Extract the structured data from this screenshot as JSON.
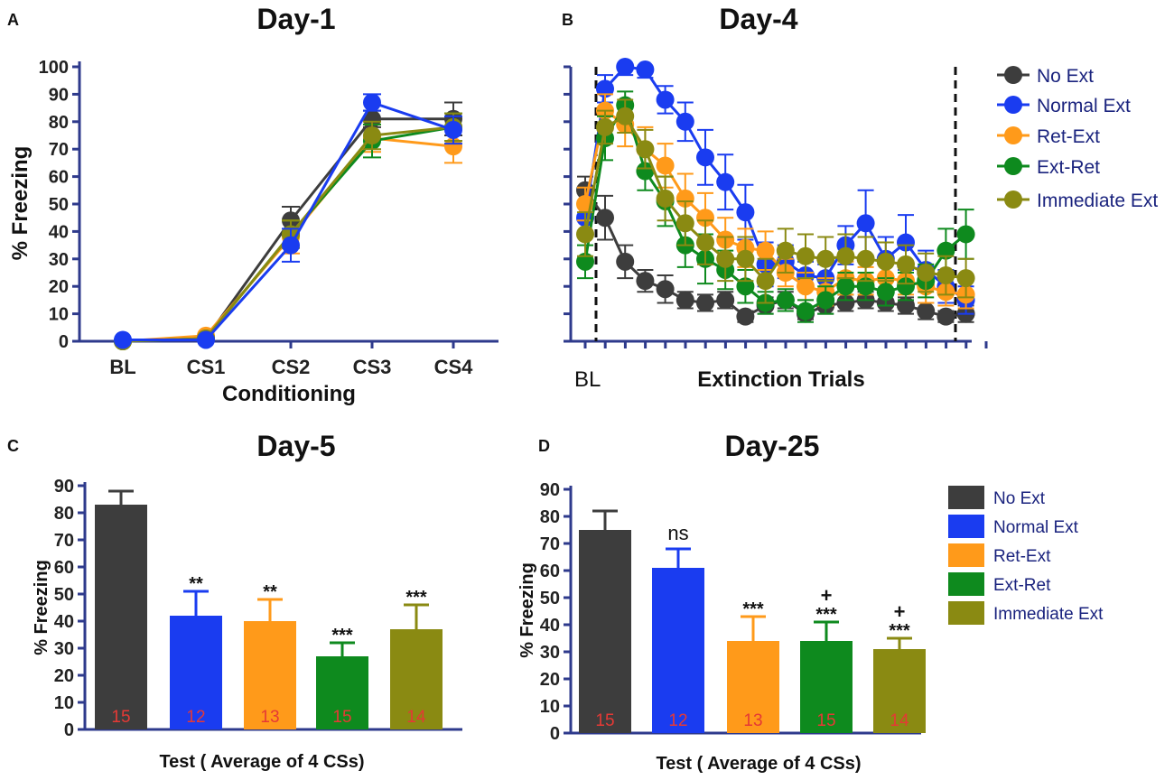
{
  "colors": {
    "No Ext": "#3d3d3d",
    "Normal Ext": "#1a3cf0",
    "Ret-Ext": "#ff9a1a",
    "Ext-Ret": "#0e8a1e",
    "Immediate Ext": "#8a8a12",
    "axis": "#2e3a8c",
    "n_label": "#e53935"
  },
  "chart_data": [
    {
      "id": "A",
      "panel_letter": "A",
      "type": "line",
      "title": "Day-1",
      "xlabel": "Conditioning",
      "ylabel": "% Freezing",
      "ylim": [
        0,
        100
      ],
      "yticks": [
        "0",
        "10",
        "20",
        "30",
        "40",
        "50",
        "60",
        "70",
        "80",
        "90",
        "100"
      ],
      "categories": [
        "BL",
        "CS1",
        "CS2",
        "CS3",
        "CS4"
      ],
      "series": [
        {
          "name": "No Ext",
          "values": [
            0,
            1,
            44,
            81,
            81
          ],
          "err": [
            0,
            0.5,
            5,
            3,
            6
          ]
        },
        {
          "name": "Ret-Ext",
          "values": [
            0,
            2,
            38,
            74,
            71
          ],
          "err": [
            0,
            0.5,
            6,
            5,
            6
          ]
        },
        {
          "name": "Ext-Ret",
          "values": [
            0,
            1,
            39,
            73,
            78
          ],
          "err": [
            0,
            0.5,
            5,
            6,
            5
          ]
        },
        {
          "name": "Immediate Ext",
          "values": [
            0,
            1,
            39,
            75,
            78
          ],
          "err": [
            0,
            0.5,
            5,
            5,
            5
          ]
        },
        {
          "name": "Normal Ext",
          "values": [
            0.5,
            0.5,
            35,
            87,
            77
          ],
          "err": [
            0,
            0.5,
            6,
            3,
            5
          ]
        }
      ]
    },
    {
      "id": "B",
      "panel_letter": "B",
      "type": "line",
      "title": "Day-4",
      "xlabel": "Extinction Trials",
      "x_first_label": "BL",
      "ylim": [
        0,
        100
      ],
      "series": [
        {
          "name": "No Ext",
          "values": [
            55,
            45,
            29,
            22,
            19,
            15,
            14,
            15,
            9,
            13,
            15,
            10,
            13,
            14,
            15,
            14,
            13,
            11,
            9,
            10
          ],
          "err": [
            5,
            8,
            6,
            4,
            5,
            3,
            3,
            3,
            2,
            3,
            3,
            2,
            3,
            3,
            3,
            3,
            3,
            3,
            2,
            3
          ]
        },
        {
          "name": "Normal Ext",
          "values": [
            45,
            92,
            100,
            99,
            88,
            80,
            67,
            58,
            47,
            28,
            29,
            24,
            23,
            35,
            43,
            30,
            36,
            26,
            20,
            15
          ],
          "err": [
            6,
            5,
            3,
            3,
            5,
            7,
            10,
            10,
            10,
            8,
            6,
            5,
            5,
            7,
            12,
            8,
            10,
            7,
            6,
            5
          ]
        },
        {
          "name": "Ret-Ext",
          "values": [
            50,
            84,
            79,
            70,
            64,
            52,
            45,
            37,
            34,
            33,
            25,
            20,
            18,
            23,
            22,
            23,
            22,
            20,
            18,
            17
          ],
          "err": [
            6,
            6,
            8,
            8,
            8,
            9,
            9,
            8,
            7,
            7,
            5,
            5,
            5,
            6,
            5,
            6,
            5,
            6,
            5,
            5
          ]
        },
        {
          "name": "Ext-Ret",
          "values": [
            29,
            74,
            86,
            62,
            51,
            35,
            30,
            26,
            20,
            14,
            15,
            11,
            15,
            20,
            20,
            18,
            20,
            22,
            33,
            39
          ],
          "err": [
            6,
            8,
            5,
            7,
            9,
            8,
            9,
            7,
            6,
            4,
            4,
            4,
            5,
            5,
            5,
            5,
            5,
            6,
            8,
            9
          ]
        },
        {
          "name": "Immediate Ext",
          "values": [
            39,
            78,
            82,
            70,
            52,
            43,
            36,
            30,
            30,
            22,
            33,
            31,
            30,
            31,
            30,
            29,
            28,
            25,
            24,
            23
          ],
          "err": [
            8,
            6,
            6,
            7,
            8,
            8,
            8,
            8,
            8,
            8,
            8,
            8,
            8,
            8,
            8,
            7,
            7,
            7,
            7,
            7
          ]
        }
      ],
      "legend": [
        "No Ext",
        "Normal Ext",
        "Ret-Ext",
        "Ext-Ret",
        "Immediate Ext"
      ],
      "legend_position": "right"
    },
    {
      "id": "C",
      "panel_letter": "C",
      "type": "bar",
      "title": "Day-5",
      "xlabel": "Test ( Average of 4 CSs)",
      "ylabel": "% Freezing",
      "ylim": [
        0,
        90
      ],
      "yticks": [
        "0",
        "10",
        "20",
        "30",
        "40",
        "50",
        "60",
        "70",
        "80",
        "90"
      ],
      "categories": [
        "No Ext",
        "Normal Ext",
        "Ret-Ext",
        "Ext-Ret",
        "Immediate Ext"
      ],
      "values": [
        83,
        42,
        40,
        27,
        37
      ],
      "err": [
        5,
        9,
        8,
        5,
        9
      ],
      "n": [
        "15",
        "12",
        "13",
        "15",
        "14"
      ],
      "annotations": [
        "",
        "**",
        "**",
        "***",
        "***"
      ]
    },
    {
      "id": "D",
      "panel_letter": "D",
      "type": "bar",
      "title": "Day-25",
      "xlabel": "Test ( Average of 4 CSs)",
      "ylabel": "% Freezing",
      "ylim": [
        0,
        90
      ],
      "yticks": [
        "0",
        "10",
        "20",
        "30",
        "40",
        "50",
        "60",
        "70",
        "80",
        "90"
      ],
      "categories": [
        "No Ext",
        "Normal Ext",
        "Ret-Ext",
        "Ext-Ret",
        "Immediate Ext"
      ],
      "values": [
        75,
        61,
        34,
        34,
        31
      ],
      "err": [
        7,
        7,
        9,
        7,
        4
      ],
      "n": [
        "15",
        "12",
        "13",
        "15",
        "14"
      ],
      "annotations": [
        "",
        "ns",
        "***",
        "***",
        "***"
      ],
      "annotations_top": [
        "",
        "",
        "",
        "+",
        "+"
      ],
      "legend": [
        "No Ext",
        "Normal Ext",
        "Ret-Ext",
        "Ext-Ret",
        "Immediate Ext"
      ],
      "legend_position": "right"
    }
  ]
}
